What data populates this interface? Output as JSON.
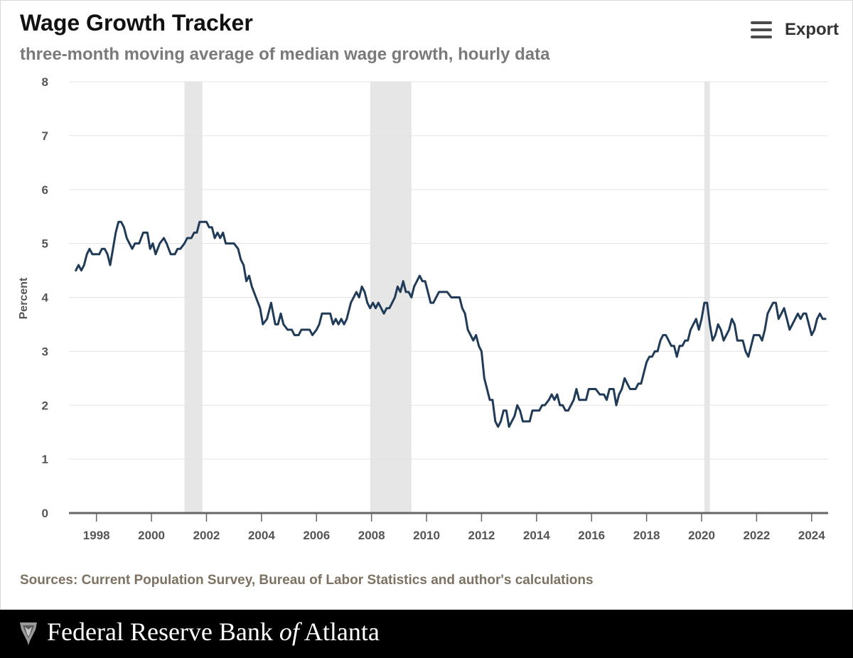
{
  "header": {
    "title": "Wage Growth Tracker",
    "subtitle": "three-month moving average of median wage growth, hourly data",
    "export_label": "Export"
  },
  "source_note": "Sources: Current Population Survey, Bureau of Labor Statistics and author's calculations",
  "footer": {
    "name_part1": "Federal Reserve Bank ",
    "name_part2": "of",
    "name_part3": " Atlanta"
  },
  "colors": {
    "line": "#1f3b57",
    "recession": "#e6e6e6",
    "grid": "#e3e3e3",
    "axis": "#666666",
    "source": "#7d7262"
  },
  "chart_data": {
    "type": "line",
    "title": "Wage Growth Tracker",
    "subtitle": "three-month moving average of median wage growth, hourly data",
    "xlabel": "",
    "ylabel": "Percent",
    "xlim": [
      1997.0,
      2024.6
    ],
    "ylim": [
      0,
      8
    ],
    "yticks": [
      0,
      1,
      2,
      3,
      4,
      5,
      6,
      7,
      8
    ],
    "xticks": [
      1998,
      2000,
      2002,
      2004,
      2006,
      2008,
      2010,
      2012,
      2014,
      2016,
      2018,
      2020,
      2022,
      2024
    ],
    "grid": true,
    "recessions": [
      [
        2001.2,
        2001.85
      ],
      [
        2007.95,
        2009.45
      ],
      [
        2020.1,
        2020.3
      ]
    ],
    "series": [
      {
        "name": "",
        "points": [
          [
            1997.25,
            4.5
          ],
          [
            1997.35,
            4.6
          ],
          [
            1997.45,
            4.5
          ],
          [
            1997.55,
            4.6
          ],
          [
            1997.65,
            4.8
          ],
          [
            1997.75,
            4.9
          ],
          [
            1997.85,
            4.8
          ],
          [
            1998.0,
            4.8
          ],
          [
            1998.1,
            4.8
          ],
          [
            1998.2,
            4.9
          ],
          [
            1998.3,
            4.9
          ],
          [
            1998.4,
            4.8
          ],
          [
            1998.5,
            4.6
          ],
          [
            1998.6,
            4.9
          ],
          [
            1998.7,
            5.2
          ],
          [
            1998.8,
            5.4
          ],
          [
            1998.9,
            5.4
          ],
          [
            1999.0,
            5.3
          ],
          [
            1999.1,
            5.1
          ],
          [
            1999.2,
            5.0
          ],
          [
            1999.3,
            4.9
          ],
          [
            1999.4,
            5.0
          ],
          [
            1999.55,
            5.0
          ],
          [
            1999.7,
            5.2
          ],
          [
            1999.85,
            5.2
          ],
          [
            1999.95,
            4.9
          ],
          [
            2000.05,
            5.0
          ],
          [
            2000.15,
            4.8
          ],
          [
            2000.3,
            5.0
          ],
          [
            2000.45,
            5.1
          ],
          [
            2000.55,
            5.0
          ],
          [
            2000.7,
            4.8
          ],
          [
            2000.85,
            4.8
          ],
          [
            2000.95,
            4.9
          ],
          [
            2001.05,
            4.9
          ],
          [
            2001.2,
            5.0
          ],
          [
            2001.3,
            5.1
          ],
          [
            2001.45,
            5.1
          ],
          [
            2001.55,
            5.2
          ],
          [
            2001.65,
            5.2
          ],
          [
            2001.75,
            5.4
          ],
          [
            2001.85,
            5.4
          ],
          [
            2002.0,
            5.4
          ],
          [
            2002.1,
            5.3
          ],
          [
            2002.2,
            5.3
          ],
          [
            2002.3,
            5.1
          ],
          [
            2002.4,
            5.2
          ],
          [
            2002.5,
            5.1
          ],
          [
            2002.6,
            5.2
          ],
          [
            2002.7,
            5.0
          ],
          [
            2002.85,
            5.0
          ],
          [
            2003.0,
            5.0
          ],
          [
            2003.15,
            4.9
          ],
          [
            2003.25,
            4.7
          ],
          [
            2003.35,
            4.6
          ],
          [
            2003.45,
            4.3
          ],
          [
            2003.55,
            4.4
          ],
          [
            2003.65,
            4.2
          ],
          [
            2003.8,
            4.0
          ],
          [
            2003.95,
            3.8
          ],
          [
            2004.05,
            3.5
          ],
          [
            2004.2,
            3.6
          ],
          [
            2004.35,
            3.9
          ],
          [
            2004.5,
            3.5
          ],
          [
            2004.6,
            3.5
          ],
          [
            2004.7,
            3.7
          ],
          [
            2004.8,
            3.5
          ],
          [
            2004.95,
            3.4
          ],
          [
            2005.1,
            3.4
          ],
          [
            2005.2,
            3.3
          ],
          [
            2005.35,
            3.3
          ],
          [
            2005.45,
            3.4
          ],
          [
            2005.6,
            3.4
          ],
          [
            2005.75,
            3.4
          ],
          [
            2005.85,
            3.3
          ],
          [
            2006.0,
            3.4
          ],
          [
            2006.1,
            3.5
          ],
          [
            2006.2,
            3.7
          ],
          [
            2006.35,
            3.7
          ],
          [
            2006.5,
            3.7
          ],
          [
            2006.6,
            3.5
          ],
          [
            2006.7,
            3.6
          ],
          [
            2006.8,
            3.5
          ],
          [
            2006.9,
            3.6
          ],
          [
            2007.0,
            3.5
          ],
          [
            2007.1,
            3.6
          ],
          [
            2007.25,
            3.9
          ],
          [
            2007.35,
            4.0
          ],
          [
            2007.45,
            4.1
          ],
          [
            2007.55,
            4.0
          ],
          [
            2007.65,
            4.2
          ],
          [
            2007.75,
            4.1
          ],
          [
            2007.85,
            3.9
          ],
          [
            2007.95,
            3.8
          ],
          [
            2008.05,
            3.9
          ],
          [
            2008.15,
            3.8
          ],
          [
            2008.25,
            3.9
          ],
          [
            2008.35,
            3.8
          ],
          [
            2008.45,
            3.7
          ],
          [
            2008.55,
            3.8
          ],
          [
            2008.65,
            3.8
          ],
          [
            2008.75,
            3.9
          ],
          [
            2008.85,
            4.0
          ],
          [
            2008.95,
            4.2
          ],
          [
            2009.05,
            4.1
          ],
          [
            2009.15,
            4.3
          ],
          [
            2009.25,
            4.1
          ],
          [
            2009.35,
            4.1
          ],
          [
            2009.45,
            4.0
          ],
          [
            2009.55,
            4.2
          ],
          [
            2009.65,
            4.3
          ],
          [
            2009.75,
            4.4
          ],
          [
            2009.85,
            4.3
          ],
          [
            2009.95,
            4.3
          ],
          [
            2010.05,
            4.1
          ],
          [
            2010.15,
            3.9
          ],
          [
            2010.25,
            3.9
          ],
          [
            2010.35,
            4.0
          ],
          [
            2010.45,
            4.1
          ],
          [
            2010.6,
            4.1
          ],
          [
            2010.75,
            4.1
          ],
          [
            2010.9,
            4.0
          ],
          [
            2011.05,
            4.0
          ],
          [
            2011.2,
            4.0
          ],
          [
            2011.3,
            3.8
          ],
          [
            2011.4,
            3.7
          ],
          [
            2011.5,
            3.4
          ],
          [
            2011.6,
            3.3
          ],
          [
            2011.7,
            3.2
          ],
          [
            2011.8,
            3.3
          ],
          [
            2011.9,
            3.1
          ],
          [
            2012.0,
            3.0
          ],
          [
            2012.1,
            2.5
          ],
          [
            2012.2,
            2.3
          ],
          [
            2012.3,
            2.1
          ],
          [
            2012.4,
            2.1
          ],
          [
            2012.5,
            1.7
          ],
          [
            2012.6,
            1.6
          ],
          [
            2012.7,
            1.7
          ],
          [
            2012.8,
            1.9
          ],
          [
            2012.9,
            1.9
          ],
          [
            2013.0,
            1.6
          ],
          [
            2013.1,
            1.7
          ],
          [
            2013.2,
            1.8
          ],
          [
            2013.3,
            2.0
          ],
          [
            2013.4,
            1.9
          ],
          [
            2013.5,
            1.7
          ],
          [
            2013.6,
            1.7
          ],
          [
            2013.75,
            1.7
          ],
          [
            2013.85,
            1.9
          ],
          [
            2013.95,
            1.9
          ],
          [
            2014.1,
            1.9
          ],
          [
            2014.2,
            2.0
          ],
          [
            2014.3,
            2.0
          ],
          [
            2014.45,
            2.1
          ],
          [
            2014.55,
            2.2
          ],
          [
            2014.65,
            2.1
          ],
          [
            2014.75,
            2.2
          ],
          [
            2014.85,
            2.0
          ],
          [
            2014.95,
            2.0
          ],
          [
            2015.05,
            1.9
          ],
          [
            2015.15,
            1.9
          ],
          [
            2015.25,
            2.0
          ],
          [
            2015.35,
            2.1
          ],
          [
            2015.45,
            2.3
          ],
          [
            2015.55,
            2.1
          ],
          [
            2015.65,
            2.1
          ],
          [
            2015.8,
            2.1
          ],
          [
            2015.9,
            2.3
          ],
          [
            2016.0,
            2.3
          ],
          [
            2016.15,
            2.3
          ],
          [
            2016.3,
            2.2
          ],
          [
            2016.45,
            2.2
          ],
          [
            2016.55,
            2.1
          ],
          [
            2016.65,
            2.3
          ],
          [
            2016.8,
            2.3
          ],
          [
            2016.9,
            2.0
          ],
          [
            2017.0,
            2.2
          ],
          [
            2017.1,
            2.3
          ],
          [
            2017.2,
            2.5
          ],
          [
            2017.3,
            2.4
          ],
          [
            2017.4,
            2.3
          ],
          [
            2017.5,
            2.3
          ],
          [
            2017.6,
            2.3
          ],
          [
            2017.7,
            2.4
          ],
          [
            2017.8,
            2.4
          ],
          [
            2017.9,
            2.6
          ],
          [
            2018.0,
            2.8
          ],
          [
            2018.1,
            2.9
          ],
          [
            2018.2,
            2.9
          ],
          [
            2018.3,
            3.0
          ],
          [
            2018.4,
            3.0
          ],
          [
            2018.5,
            3.2
          ],
          [
            2018.6,
            3.3
          ],
          [
            2018.7,
            3.3
          ],
          [
            2018.8,
            3.2
          ],
          [
            2018.9,
            3.1
          ],
          [
            2019.0,
            3.1
          ],
          [
            2019.1,
            2.9
          ],
          [
            2019.2,
            3.1
          ],
          [
            2019.3,
            3.1
          ],
          [
            2019.4,
            3.2
          ],
          [
            2019.5,
            3.2
          ],
          [
            2019.6,
            3.4
          ],
          [
            2019.7,
            3.5
          ],
          [
            2019.8,
            3.6
          ],
          [
            2019.9,
            3.4
          ],
          [
            2020.0,
            3.6
          ],
          [
            2020.1,
            3.9
          ],
          [
            2020.2,
            3.9
          ],
          [
            2020.3,
            3.5
          ],
          [
            2020.4,
            3.2
          ],
          [
            2020.5,
            3.3
          ],
          [
            2020.6,
            3.5
          ],
          [
            2020.7,
            3.4
          ],
          [
            2020.8,
            3.2
          ],
          [
            2020.9,
            3.3
          ],
          [
            2021.0,
            3.4
          ],
          [
            2021.1,
            3.6
          ],
          [
            2021.2,
            3.5
          ],
          [
            2021.3,
            3.2
          ],
          [
            2021.4,
            3.2
          ],
          [
            2021.5,
            3.2
          ],
          [
            2021.6,
            3.0
          ],
          [
            2021.7,
            2.9
          ],
          [
            2021.8,
            3.1
          ],
          [
            2021.9,
            3.3
          ],
          [
            2022.0,
            3.3
          ],
          [
            2022.1,
            3.3
          ],
          [
            2022.2,
            3.2
          ],
          [
            2022.3,
            3.4
          ],
          [
            2022.4,
            3.7
          ],
          [
            2022.5,
            3.8
          ],
          [
            2022.6,
            3.9
          ],
          [
            2022.7,
            3.9
          ],
          [
            2022.8,
            3.6
          ],
          [
            2022.9,
            3.7
          ],
          [
            2023.0,
            3.8
          ],
          [
            2023.1,
            3.6
          ],
          [
            2023.2,
            3.4
          ],
          [
            2023.3,
            3.5
          ],
          [
            2023.4,
            3.6
          ],
          [
            2023.5,
            3.7
          ],
          [
            2023.6,
            3.6
          ],
          [
            2023.7,
            3.7
          ],
          [
            2023.8,
            3.7
          ],
          [
            2023.9,
            3.5
          ],
          [
            2024.0,
            3.3
          ],
          [
            2024.1,
            3.4
          ],
          [
            2024.2,
            3.6
          ],
          [
            2024.3,
            3.7
          ],
          [
            2024.4,
            3.6
          ],
          [
            2024.5,
            3.6
          ]
        ]
      }
    ]
  }
}
